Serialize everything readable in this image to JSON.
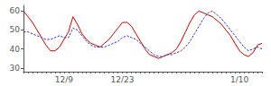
{
  "chart_data": {
    "type": "line",
    "categories": [
      null,
      null,
      null,
      null,
      null,
      null,
      null,
      null,
      null,
      "12/9",
      null,
      null,
      null,
      null,
      null,
      null,
      null,
      null,
      null,
      null,
      null,
      null,
      "12/23",
      null,
      null,
      null,
      null,
      null,
      null,
      null,
      null,
      null,
      null,
      null,
      null,
      null,
      null,
      null,
      null,
      null,
      null,
      null,
      null,
      null,
      null,
      null,
      null,
      null,
      "1/10",
      null,
      null,
      null,
      null,
      null
    ],
    "series": [
      {
        "color": "#cc0000",
        "line_style": "solid",
        "values": [
          60,
          57,
          54,
          50,
          46,
          42,
          39,
          39,
          41,
          45,
          49,
          57,
          53,
          48,
          45,
          43,
          42,
          41,
          43,
          45,
          48,
          51,
          54,
          54,
          52,
          48,
          44,
          40,
          37,
          36,
          35,
          36,
          37,
          38,
          40,
          44,
          49,
          54,
          58,
          60,
          59,
          58,
          57,
          55,
          53,
          50,
          47,
          43,
          39,
          37,
          36,
          38,
          42,
          43
        ]
      },
      {
        "color": "#3333cc",
        "line_style": "dashed",
        "values": [
          49,
          49,
          48,
          47,
          46,
          45,
          45,
          46,
          47,
          46,
          46,
          51,
          50,
          47,
          44,
          42,
          41,
          41,
          41,
          42,
          43,
          44,
          46,
          47,
          46,
          45,
          43,
          41,
          39,
          37,
          36,
          36,
          37,
          37,
          38,
          39,
          41,
          44,
          48,
          52,
          56,
          59,
          60,
          58,
          56,
          53,
          50,
          47,
          44,
          41,
          39,
          40,
          41,
          40
        ]
      }
    ],
    "ylim": [
      28,
      63
    ],
    "yticks": [
      30,
      40,
      50,
      60
    ],
    "grid": false
  }
}
